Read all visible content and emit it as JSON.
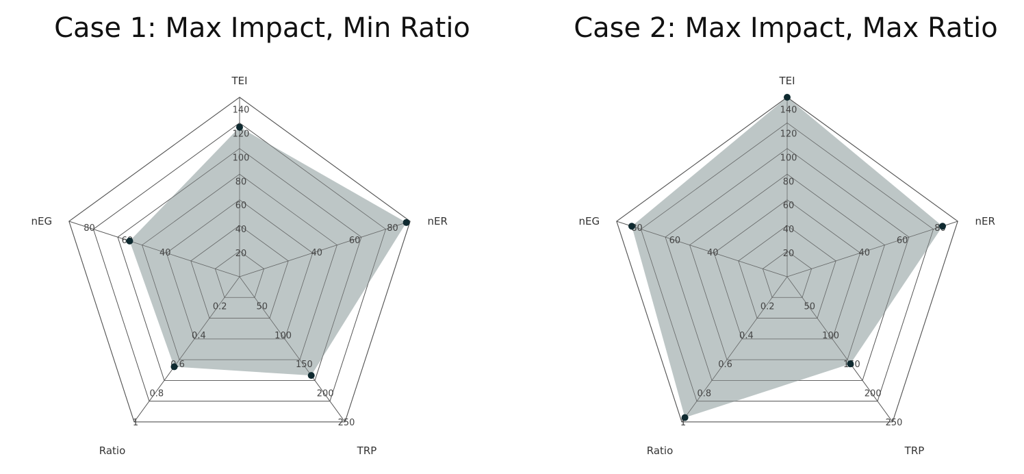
{
  "chart_data": [
    {
      "type": "radar",
      "title": "Case 1: Max Impact, Min Ratio",
      "axes": [
        {
          "name": "TEI",
          "max": 150,
          "ticks": [
            20,
            40,
            60,
            80,
            100,
            120,
            140
          ],
          "value": 125
        },
        {
          "name": "nER",
          "max": 90,
          "ticks": [
            40,
            60,
            80
          ],
          "value": 88
        },
        {
          "name": "TRP",
          "max": 250,
          "ticks": [
            50,
            100,
            150,
            200,
            250
          ],
          "value": 170
        },
        {
          "name": "Ratio",
          "max": 1,
          "ticks": [
            0.2,
            0.4,
            0.6,
            0.8,
            1
          ],
          "value": 0.62
        },
        {
          "name": "nEG",
          "max": 90,
          "ticks": [
            40,
            60,
            80
          ],
          "value": 58
        }
      ],
      "colors": {
        "fill": "#b6c0c0",
        "marker": "#0f2a30",
        "grid": "#555555"
      }
    },
    {
      "type": "radar",
      "title": "Case 2: Max Impact, Max Ratio",
      "axes": [
        {
          "name": "TEI",
          "max": 150,
          "ticks": [
            20,
            40,
            60,
            80,
            100,
            120,
            140
          ],
          "value": 150
        },
        {
          "name": "nER",
          "max": 90,
          "ticks": [
            40,
            60,
            80
          ],
          "value": 82
        },
        {
          "name": "TRP",
          "max": 250,
          "ticks": [
            50,
            100,
            150,
            200,
            250
          ],
          "value": 150
        },
        {
          "name": "Ratio",
          "max": 1,
          "ticks": [
            0.2,
            0.4,
            0.6,
            0.8,
            1
          ],
          "value": 0.97
        },
        {
          "name": "nEG",
          "max": 90,
          "ticks": [
            40,
            60,
            80
          ],
          "value": 82
        }
      ],
      "colors": {
        "fill": "#b6c0c0",
        "marker": "#0f2a30",
        "grid": "#555555"
      }
    }
  ]
}
